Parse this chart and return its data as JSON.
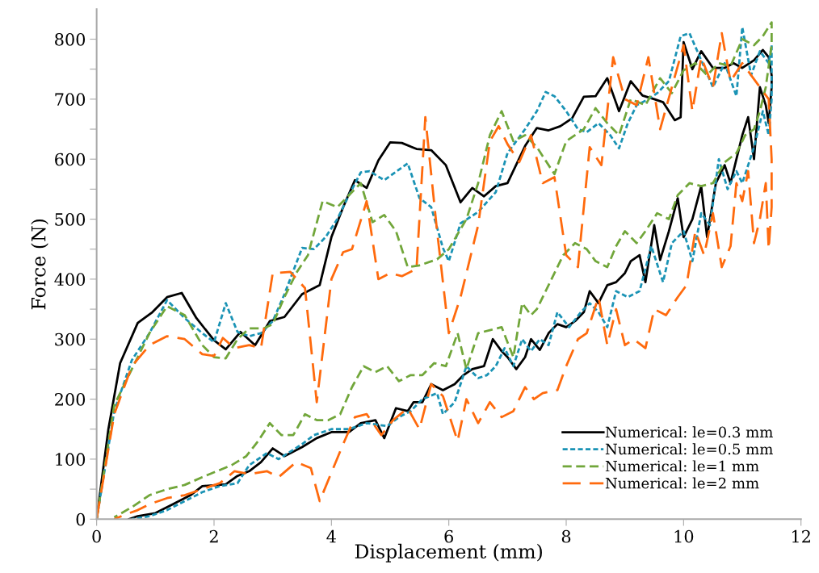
{
  "chart_data": {
    "type": "line",
    "xlabel": "Displacement (mm)",
    "ylabel": "Force (N)",
    "xlim": [
      0,
      12
    ],
    "xticks": [
      0,
      2,
      4,
      6,
      8,
      10,
      12
    ],
    "ylim": [
      0,
      850
    ],
    "yticks": [
      0,
      {
        "value": 50,
        "label": null
      },
      100,
      {
        "value": 150,
        "label": null
      },
      200,
      {
        "value": 250,
        "label": null
      },
      300,
      {
        "value": 350,
        "label": null
      },
      400,
      {
        "value": 450,
        "label": null
      },
      500,
      {
        "value": 550,
        "label": null
      },
      600,
      {
        "value": 650,
        "label": null
      },
      700,
      {
        "value": 750,
        "label": null
      },
      800
    ],
    "grid": false,
    "legend": "bottom right",
    "marker": "none",
    "series": [
      {
        "name": "Numerical: le=0.3 mm",
        "color": "#000000",
        "line_style": "solid",
        "x": [
          0,
          0.2,
          0.4,
          0.7,
          0.95,
          1.2,
          1.45,
          1.7,
          2.0,
          2.2,
          2.45,
          2.7,
          2.95,
          3.2,
          3.5,
          3.8,
          4.0,
          4.2,
          4.4,
          4.6,
          4.8,
          5.0,
          5.2,
          5.45,
          5.7,
          5.95,
          6.2,
          6.4,
          6.6,
          6.8,
          7.0,
          7.3,
          7.5,
          7.7,
          7.9,
          8.1,
          8.3,
          8.5,
          8.7,
          8.9,
          9.1,
          9.3,
          9.5,
          9.65,
          9.85,
          9.95,
          10.0,
          10.15,
          10.3,
          10.5,
          10.7,
          10.85,
          11.0,
          11.2,
          11.35,
          11.45,
          11.5,
          11.5,
          11.45,
          11.4,
          11.3,
          11.2,
          11.1,
          11.0,
          10.95,
          10.8,
          10.7,
          10.55,
          10.4,
          10.3,
          10.15,
          10.0,
          9.9,
          9.75,
          9.6,
          9.5,
          9.35,
          9.25,
          9.1,
          9.0,
          8.85,
          8.7,
          8.55,
          8.4,
          8.3,
          8.15,
          8.0,
          7.85,
          7.7,
          7.55,
          7.4,
          7.3,
          7.15,
          7.0,
          6.9,
          6.75,
          6.6,
          6.4,
          6.25,
          6.1,
          5.9,
          5.7,
          5.55,
          5.4,
          5.3,
          5.1,
          4.9,
          4.75,
          4.5,
          4.3,
          4.0,
          3.75,
          3.5,
          3.2,
          3.0,
          2.8,
          2.6,
          2.4,
          2.2,
          1.8,
          1.6,
          1.3,
          1.0,
          0.7,
          0.55
        ],
        "values": [
          0,
          150,
          260,
          327,
          345,
          370,
          377,
          335,
          298,
          283,
          312,
          290,
          330,
          337,
          375,
          390,
          470,
          520,
          565,
          552,
          598,
          628,
          627,
          617,
          615,
          590,
          528,
          552,
          538,
          555,
          560,
          622,
          652,
          648,
          655,
          668,
          704,
          705,
          735,
          680,
          730,
          706,
          700,
          695,
          665,
          670,
          795,
          750,
          780,
          752,
          752,
          760,
          752,
          765,
          782,
          770,
          740,
          720,
          660,
          690,
          720,
          600,
          670,
          640,
          620,
          560,
          590,
          560,
          470,
          555,
          500,
          470,
          535,
          480,
          432,
          490,
          395,
          440,
          430,
          410,
          395,
          390,
          360,
          380,
          345,
          330,
          320,
          325,
          310,
          282,
          300,
          270,
          250,
          270,
          280,
          300,
          255,
          250,
          240,
          225,
          215,
          225,
          195,
          195,
          180,
          185,
          135,
          165,
          160,
          145,
          145,
          135,
          120,
          105,
          118,
          95,
          80,
          72,
          58,
          55,
          40,
          25,
          10,
          5,
          0
        ]
      },
      {
        "name": "Numerical: le=0.5 mm",
        "color": "#1a93b5",
        "line_style": "dotted",
        "x": [
          0,
          0.3,
          0.6,
          0.9,
          1.2,
          1.5,
          1.8,
          2.0,
          2.2,
          2.4,
          2.6,
          2.8,
          3.0,
          3.2,
          3.5,
          3.7,
          3.9,
          4.1,
          4.3,
          4.5,
          4.65,
          4.9,
          5.3,
          5.5,
          5.7,
          5.9,
          6.0,
          6.2,
          6.5,
          6.8,
          7.0,
          7.3,
          7.5,
          7.65,
          7.8,
          8.0,
          8.2,
          8.35,
          8.55,
          8.75,
          8.9,
          9.05,
          9.2,
          9.4,
          9.55,
          9.75,
          9.95,
          10.1,
          10.3,
          10.5,
          10.7,
          10.9,
          11.0,
          11.15,
          11.3,
          11.45,
          11.5,
          11.5,
          11.45,
          11.35,
          11.2,
          11.1,
          11.0,
          10.9,
          10.75,
          10.6,
          10.45,
          10.3,
          10.15,
          10.0,
          9.8,
          9.65,
          9.45,
          9.25,
          9.05,
          8.85,
          8.7,
          8.55,
          8.4,
          8.25,
          8.05,
          7.85,
          7.7,
          7.55,
          7.4,
          7.25,
          7.1,
          6.95,
          6.8,
          6.65,
          6.5,
          6.3,
          6.1,
          5.9,
          5.8,
          5.55,
          5.35,
          5.15,
          4.95,
          4.6,
          4.3,
          4.0,
          3.7,
          3.5,
          3.1,
          2.9,
          2.6,
          2.4,
          2.1,
          1.8,
          1.5,
          1.2,
          0.9,
          0.6
        ],
        "values": [
          0,
          180,
          265,
          310,
          365,
          335,
          310,
          295,
          360,
          312,
          305,
          310,
          330,
          375,
          452,
          450,
          470,
          500,
          540,
          578,
          580,
          565,
          593,
          535,
          520,
          452,
          430,
          493,
          512,
          545,
          610,
          650,
          680,
          712,
          705,
          680,
          650,
          645,
          660,
          640,
          618,
          660,
          690,
          700,
          710,
          730,
          805,
          810,
          765,
          720,
          760,
          705,
          820,
          740,
          780,
          760,
          790,
          700,
          640,
          680,
          620,
          590,
          560,
          580,
          550,
          600,
          490,
          510,
          430,
          480,
          460,
          395,
          455,
          380,
          370,
          380,
          320,
          345,
          360,
          345,
          320,
          345,
          290,
          300,
          280,
          300,
          255,
          285,
          255,
          240,
          235,
          255,
          195,
          175,
          210,
          200,
          180,
          170,
          155,
          160,
          150,
          150,
          140,
          125,
          100,
          110,
          90,
          60,
          55,
          45,
          30,
          15,
          5,
          0
        ]
      },
      {
        "name": "Numerical: le=1 mm",
        "color": "#71a63a",
        "line_style": "dashed",
        "x": [
          0,
          0.3,
          0.6,
          0.9,
          1.2,
          1.5,
          1.8,
          2.0,
          2.2,
          2.4,
          2.6,
          2.85,
          3.0,
          3.2,
          3.4,
          3.6,
          3.85,
          4.1,
          4.3,
          4.5,
          4.7,
          4.9,
          5.1,
          5.3,
          5.5,
          5.8,
          6.0,
          6.3,
          6.5,
          6.7,
          6.9,
          7.1,
          7.3,
          7.5,
          7.8,
          8.0,
          8.3,
          8.5,
          8.7,
          8.9,
          9.1,
          9.35,
          9.6,
          9.8,
          10.0,
          10.2,
          10.4,
          10.6,
          10.8,
          11.0,
          11.2,
          11.35,
          11.5,
          11.5,
          11.4,
          11.3,
          11.2,
          11.05,
          10.9,
          10.7,
          10.5,
          10.3,
          10.1,
          9.9,
          9.75,
          9.55,
          9.35,
          9.2,
          9.0,
          8.85,
          8.7,
          8.5,
          8.35,
          8.15,
          7.95,
          7.8,
          7.65,
          7.5,
          7.4,
          7.25,
          7.1,
          6.9,
          6.7,
          6.5,
          6.3,
          6.15,
          5.95,
          5.75,
          5.55,
          5.35,
          5.15,
          4.95,
          4.75,
          4.55,
          4.35,
          4.15,
          3.95,
          3.75,
          3.55,
          3.35,
          3.15,
          2.95,
          2.75,
          2.55,
          2.3,
          2.05,
          1.8,
          1.5,
          1.2,
          0.9,
          0.6,
          0.3
        ],
        "values": [
          0,
          190,
          250,
          310,
          355,
          340,
          290,
          270,
          268,
          300,
          318,
          318,
          325,
          370,
          410,
          440,
          530,
          520,
          540,
          560,
          495,
          507,
          480,
          420,
          423,
          433,
          450,
          500,
          560,
          640,
          680,
          630,
          640,
          620,
          575,
          630,
          650,
          685,
          660,
          640,
          700,
          690,
          735,
          710,
          748,
          760,
          740,
          760,
          755,
          800,
          790,
          805,
          828,
          790,
          720,
          680,
          650,
          640,
          610,
          595,
          560,
          555,
          560,
          540,
          500,
          510,
          480,
          460,
          480,
          455,
          420,
          430,
          450,
          460,
          440,
          410,
          380,
          350,
          340,
          360,
          270,
          320,
          315,
          310,
          250,
          310,
          255,
          260,
          240,
          240,
          230,
          255,
          245,
          255,
          220,
          175,
          165,
          165,
          175,
          140,
          140,
          160,
          130,
          105,
          90,
          80,
          70,
          57,
          50,
          40,
          20,
          3
        ]
      },
      {
        "name": "Numerical: le=2 mm",
        "color": "#ff6a0d",
        "line_style": "dashed",
        "x": [
          0,
          0.3,
          0.6,
          0.9,
          1.2,
          1.5,
          1.8,
          2.0,
          2.15,
          2.35,
          2.6,
          2.8,
          3.0,
          3.3,
          3.55,
          3.75,
          4.0,
          4.2,
          4.35,
          4.6,
          4.8,
          5.0,
          5.2,
          5.45,
          5.6,
          5.8,
          6.0,
          6.2,
          6.5,
          6.7,
          6.85,
          7.0,
          7.2,
          7.4,
          7.6,
          7.8,
          8.0,
          8.2,
          8.4,
          8.6,
          8.8,
          9.0,
          9.2,
          9.4,
          9.6,
          9.8,
          10.0,
          10.15,
          10.3,
          10.5,
          10.65,
          10.8,
          11.0,
          11.15,
          11.3,
          11.45,
          11.5,
          11.5,
          11.45,
          11.4,
          11.3,
          11.2,
          11.1,
          11.0,
          10.9,
          10.8,
          10.65,
          10.5,
          10.35,
          10.2,
          10.05,
          9.9,
          9.7,
          9.5,
          9.35,
          9.15,
          9.0,
          8.85,
          8.7,
          8.55,
          8.35,
          8.2,
          8.0,
          7.85,
          7.6,
          7.45,
          7.3,
          7.1,
          6.9,
          6.7,
          6.5,
          6.3,
          6.15,
          5.9,
          5.7,
          5.5,
          5.3,
          5.05,
          4.85,
          4.6,
          4.4,
          4.2,
          3.8,
          3.65,
          3.4,
          3.1,
          2.9,
          2.6,
          2.35,
          2.1,
          1.8,
          1.5,
          1.2,
          0.9,
          0.7,
          0.5,
          0.3
        ],
        "values": [
          0,
          175,
          255,
          290,
          305,
          300,
          275,
          272,
          302,
          285,
          290,
          285,
          410,
          412,
          385,
          195,
          400,
          445,
          450,
          530,
          400,
          410,
          405,
          417,
          670,
          480,
          310,
          370,
          490,
          630,
          655,
          625,
          595,
          640,
          560,
          570,
          440,
          420,
          620,
          590,
          770,
          700,
          690,
          770,
          650,
          720,
          790,
          680,
          770,
          720,
          810,
          730,
          760,
          740,
          720,
          700,
          600,
          520,
          450,
          560,
          500,
          460,
          580,
          530,
          560,
          455,
          420,
          510,
          440,
          480,
          390,
          370,
          340,
          350,
          285,
          300,
          290,
          350,
          290,
          370,
          310,
          300,
          255,
          215,
          210,
          200,
          220,
          180,
          170,
          195,
          160,
          200,
          130,
          205,
          225,
          150,
          185,
          165,
          140,
          175,
          170,
          125,
          30,
          85,
          95,
          70,
          80,
          75,
          80,
          60,
          50,
          40,
          35,
          25,
          15,
          8,
          0
        ]
      }
    ]
  }
}
